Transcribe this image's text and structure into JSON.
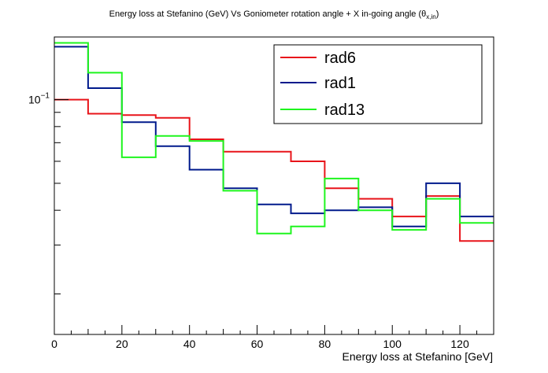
{
  "chart_data": {
    "type": "line",
    "drawstyle": "step",
    "title_main": "Energy loss at Stefanino (GeV) Vs Goniometer rotation angle + X in-going angle (θ",
    "title_sub": "x,in",
    "title_end": ")",
    "xlabel": "Energy loss at Stefanino [GeV]",
    "ylabel": "",
    "xlim": [
      0,
      130
    ],
    "ylim": [
      0.0143,
      0.168
    ],
    "yscale": "log",
    "x_ticks": [
      0,
      20,
      40,
      60,
      80,
      100,
      120
    ],
    "y_tick_label": {
      "base": "10",
      "exponent": "−1",
      "value": 0.1
    },
    "grid": false,
    "legend_position": "top-right",
    "bin_edges": [
      0,
      10,
      20,
      30,
      40,
      50,
      60,
      70,
      80,
      90,
      100,
      110,
      120,
      130
    ],
    "series": [
      {
        "name": "rad6",
        "color": "#e8141a",
        "values": [
          0.1,
          0.089,
          0.088,
          0.086,
          0.072,
          0.065,
          0.065,
          0.06,
          0.048,
          0.044,
          0.038,
          0.045,
          0.031
        ]
      },
      {
        "name": "rad1",
        "color": "#001a8c",
        "values": [
          0.155,
          0.11,
          0.083,
          0.068,
          0.056,
          0.048,
          0.042,
          0.039,
          0.04,
          0.041,
          0.035,
          0.05,
          0.038
        ]
      },
      {
        "name": "rad13",
        "color": "#1ef51e",
        "values": [
          0.16,
          0.125,
          0.062,
          0.074,
          0.071,
          0.047,
          0.033,
          0.035,
          0.052,
          0.04,
          0.034,
          0.044,
          0.036
        ]
      }
    ]
  }
}
